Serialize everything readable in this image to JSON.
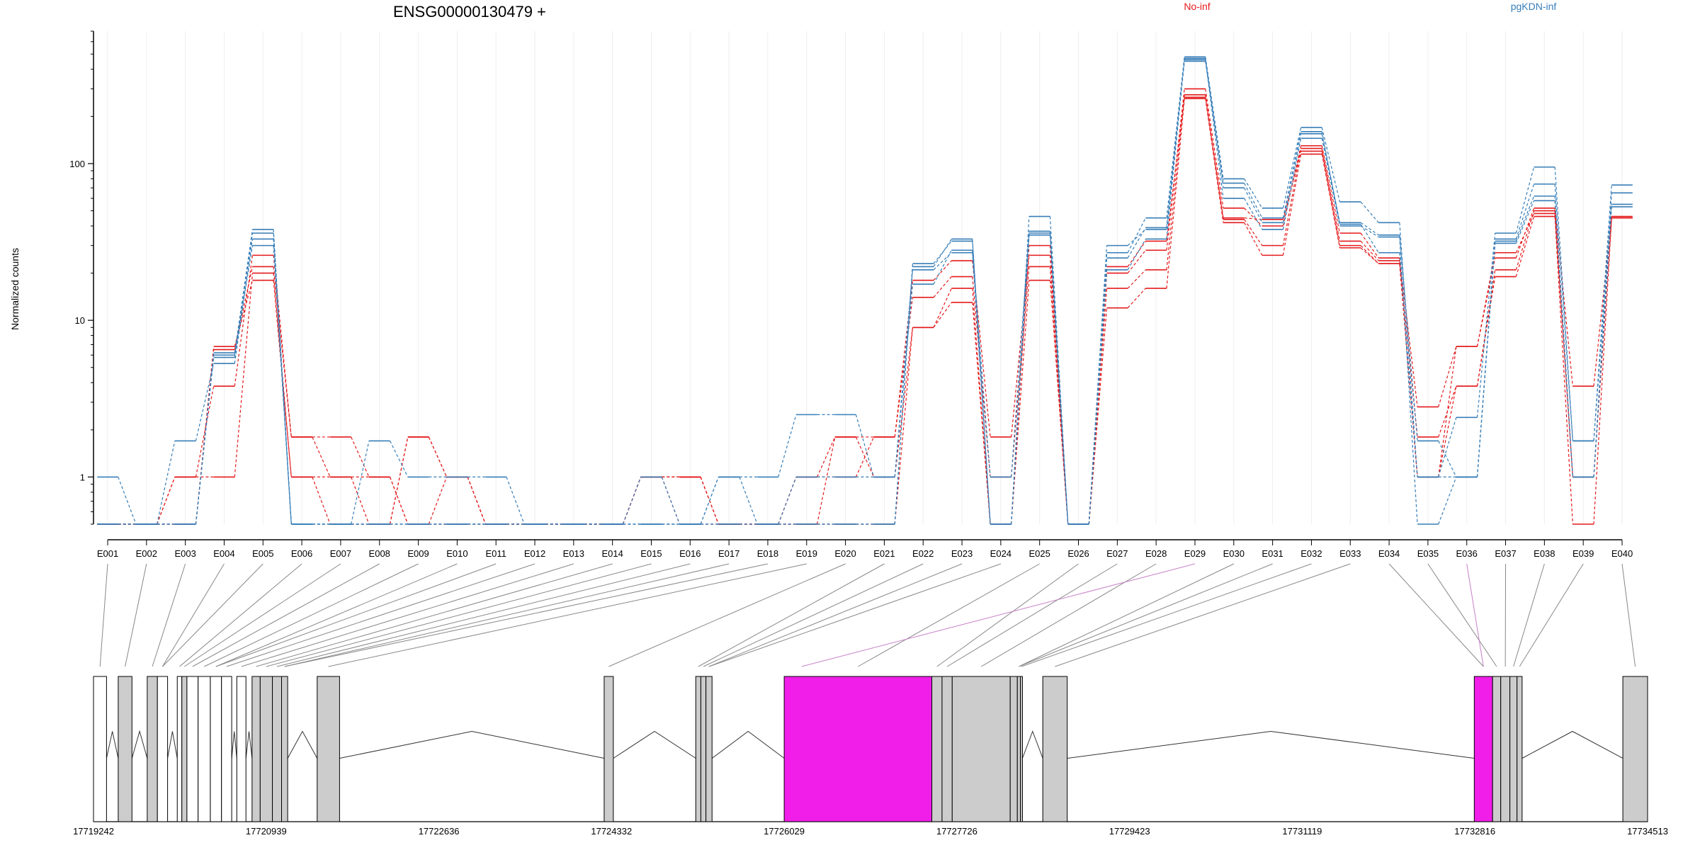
{
  "chart_data": {
    "type": "line",
    "title": "ENSG00000130479 +",
    "ylabel": "Normalized counts",
    "xlabel": "",
    "yscale": "log",
    "ylim": [
      0.5,
      700
    ],
    "yticks": [
      {
        "v": 1,
        "label": "1"
      },
      {
        "v": 10,
        "label": "10"
      },
      {
        "v": 100,
        "label": "100"
      }
    ],
    "grid": "vertical-light",
    "legend": {
      "placement": "top-right",
      "entries": [
        {
          "name": "No-inf",
          "color": "#e41a1c"
        },
        {
          "name": "pgKDN-inf",
          "color": "#377eb8"
        }
      ]
    },
    "categories": [
      "E001",
      "E002",
      "E003",
      "E004",
      "E005",
      "E006",
      "E007",
      "E008",
      "E009",
      "E010",
      "E011",
      "E012",
      "E013",
      "E014",
      "E015",
      "E016",
      "E017",
      "E018",
      "E019",
      "E020",
      "E021",
      "E022",
      "E023",
      "E024",
      "E025",
      "E026",
      "E027",
      "E028",
      "E029",
      "E030",
      "E031",
      "E032",
      "E033",
      "E034",
      "E035",
      "E036",
      "E037",
      "E038",
      "E039",
      "E040"
    ],
    "series": [
      {
        "group": "No-inf",
        "color": "#e41a1c",
        "values": [
          0.5,
          0.5,
          1,
          1,
          20,
          1,
          1,
          1,
          0.5,
          0.5,
          0.5,
          0.5,
          0.5,
          0.5,
          1,
          1,
          0.5,
          0.5,
          0.5,
          0.5,
          0.5,
          9,
          13,
          0.5,
          18,
          0.5,
          12,
          16,
          260,
          42,
          26,
          115,
          29,
          23,
          1,
          3.8,
          19,
          46,
          0.5,
          45
        ]
      },
      {
        "group": "No-inf",
        "color": "#e41a1c",
        "values": [
          0.5,
          0.5,
          1,
          3.8,
          26,
          1.8,
          1,
          0.5,
          1.8,
          1,
          0.5,
          0.5,
          0.5,
          0.5,
          1,
          1,
          0.5,
          0.5,
          1,
          1,
          1.8,
          14,
          19,
          1,
          22,
          0.5,
          16,
          21,
          275,
          44,
          30,
          125,
          32,
          24,
          1.8,
          3.8,
          21,
          50,
          1,
          45
        ]
      },
      {
        "group": "No-inf",
        "color": "#e41a1c",
        "values": [
          0.5,
          0.5,
          0.5,
          6.5,
          22,
          1.8,
          1.8,
          1,
          0.5,
          1,
          0.5,
          0.5,
          0.5,
          0.5,
          1,
          0.5,
          0.5,
          0.5,
          1,
          1.8,
          1.8,
          18,
          24,
          1.8,
          26,
          0.5,
          20,
          28,
          300,
          52,
          40,
          130,
          36,
          25,
          2.8,
          6.8,
          25,
          52,
          3.8,
          46
        ]
      },
      {
        "group": "No-inf",
        "color": "#e41a1c",
        "values": [
          0.5,
          0.5,
          0.5,
          6.8,
          18,
          1,
          0.5,
          0.5,
          1.8,
          1,
          0.5,
          0.5,
          0.5,
          0.5,
          1,
          1,
          0.5,
          0.5,
          0.5,
          1.8,
          1,
          9,
          16,
          0.5,
          30,
          0.5,
          22,
          32,
          265,
          45,
          44,
          120,
          30,
          23,
          1,
          6.8,
          27,
          48,
          1,
          45
        ]
      },
      {
        "group": "pgKDN-inf",
        "color": "#377eb8",
        "values": [
          1,
          0.5,
          1.7,
          5.3,
          33,
          0.5,
          0.5,
          1.7,
          1,
          1,
          1,
          0.5,
          0.5,
          0.5,
          1,
          0.5,
          1,
          1,
          2.5,
          2.5,
          1,
          17,
          28,
          0.5,
          35,
          0.5,
          21,
          33,
          460,
          60,
          38,
          145,
          40,
          34,
          0.5,
          1,
          31,
          58,
          1,
          53
        ]
      },
      {
        "group": "pgKDN-inf",
        "color": "#377eb8",
        "values": [
          0.5,
          0.5,
          0.5,
          5.8,
          36,
          0.5,
          0.5,
          0.5,
          0.5,
          0.5,
          0.5,
          0.5,
          0.5,
          0.5,
          0.5,
          0.5,
          0.5,
          0.5,
          0.5,
          0.5,
          0.5,
          22,
          33,
          0.5,
          37,
          0.5,
          25,
          39,
          470,
          70,
          42,
          155,
          42,
          35,
          1.7,
          1,
          33,
          74,
          1.7,
          55
        ]
      },
      {
        "group": "pgKDN-inf",
        "color": "#377eb8",
        "values": [
          0.5,
          0.5,
          0.5,
          6.2,
          38,
          0.5,
          0.5,
          0.5,
          0.5,
          0.5,
          0.5,
          0.5,
          0.5,
          0.5,
          0.5,
          0.5,
          0.5,
          0.5,
          0.5,
          0.5,
          0.5,
          23,
          32,
          0.5,
          46,
          0.5,
          27,
          45,
          480,
          80,
          52,
          170,
          57,
          42,
          1,
          2.4,
          36,
          95,
          1.7,
          73
        ]
      },
      {
        "group": "pgKDN-inf",
        "color": "#377eb8",
        "values": [
          0.5,
          0.5,
          0.5,
          6,
          30,
          0.5,
          0.5,
          0.5,
          0.5,
          0.5,
          0.5,
          0.5,
          0.5,
          0.5,
          0.5,
          0.5,
          1,
          0.5,
          1,
          1,
          1,
          21,
          27,
          1,
          36,
          0.5,
          30,
          38,
          450,
          75,
          45,
          160,
          41,
          27,
          1,
          1,
          32,
          62,
          1,
          65
        ]
      }
    ],
    "gene_model": {
      "coordinate_ticks": [
        "17719242",
        "17720939",
        "17722636",
        "17724332",
        "17726029",
        "17727726",
        "17729423",
        "17731119",
        "17732816",
        "17734513"
      ],
      "coord_range": [
        17719242,
        17734513
      ],
      "exons": [
        {
          "s": 17719242,
          "e": 17719370,
          "fill": "#ffffff"
        },
        {
          "s": 17719485,
          "e": 17719620,
          "fill": "#cccccc"
        },
        {
          "s": 17719770,
          "e": 17719870,
          "fill": "#cccccc"
        },
        {
          "s": 17719870,
          "e": 17719970,
          "fill": "#ffffff"
        },
        {
          "s": 17720065,
          "e": 17720110,
          "fill": "#ffffff"
        },
        {
          "s": 17720110,
          "e": 17720160,
          "fill": "#cccccc"
        },
        {
          "s": 17720160,
          "e": 17720270,
          "fill": "#ffffff"
        },
        {
          "s": 17720270,
          "e": 17720390,
          "fill": "#ffffff"
        },
        {
          "s": 17720390,
          "e": 17720500,
          "fill": "#ffffff"
        },
        {
          "s": 17720500,
          "e": 17720600,
          "fill": "#ffffff"
        },
        {
          "s": 17720650,
          "e": 17720740,
          "fill": "#ffffff"
        },
        {
          "s": 17720800,
          "e": 17720880,
          "fill": "#cccccc"
        },
        {
          "s": 17720880,
          "e": 17721000,
          "fill": "#cccccc"
        },
        {
          "s": 17721000,
          "e": 17721090,
          "fill": "#cccccc"
        },
        {
          "s": 17721090,
          "e": 17721150,
          "fill": "#cccccc"
        },
        {
          "s": 17721440,
          "e": 17721660,
          "fill": "#cccccc"
        },
        {
          "s": 17724260,
          "e": 17724350,
          "fill": "#cccccc"
        },
        {
          "s": 17725160,
          "e": 17725210,
          "fill": "#cccccc"
        },
        {
          "s": 17725210,
          "e": 17725260,
          "fill": "#cccccc"
        },
        {
          "s": 17725260,
          "e": 17725320,
          "fill": "#cccccc"
        },
        {
          "s": 17726029,
          "e": 17727480,
          "fill": "#f01ee8"
        },
        {
          "s": 17727480,
          "e": 17727580,
          "fill": "#cccccc"
        },
        {
          "s": 17727580,
          "e": 17727680,
          "fill": "#cccccc"
        },
        {
          "s": 17727680,
          "e": 17728250,
          "fill": "#cccccc"
        },
        {
          "s": 17728250,
          "e": 17728320,
          "fill": "#cccccc"
        },
        {
          "s": 17728320,
          "e": 17728350,
          "fill": "#cccccc"
        },
        {
          "s": 17728350,
          "e": 17728370,
          "fill": "#cccccc"
        },
        {
          "s": 17728570,
          "e": 17728810,
          "fill": "#cccccc"
        },
        {
          "s": 17732810,
          "e": 17732990,
          "fill": "#f01ee8"
        },
        {
          "s": 17732990,
          "e": 17733070,
          "fill": "#cccccc"
        },
        {
          "s": 17733070,
          "e": 17733160,
          "fill": "#cccccc"
        },
        {
          "s": 17733160,
          "e": 17733230,
          "fill": "#cccccc"
        },
        {
          "s": 17733230,
          "e": 17733280,
          "fill": "#cccccc"
        },
        {
          "s": 17734270,
          "e": 17734513,
          "fill": "#cccccc"
        }
      ],
      "highlight_color": "#c77fc7"
    }
  }
}
